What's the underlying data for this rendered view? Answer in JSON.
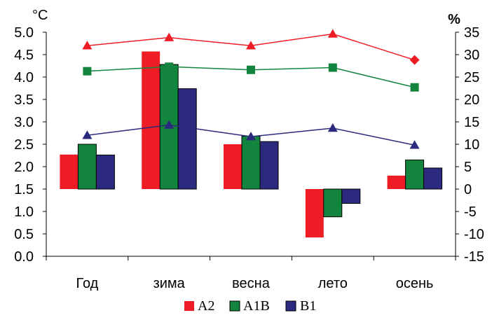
{
  "chart_data": {
    "type": "bar",
    "categories": [
      "Год",
      "зима",
      "весна",
      "лето",
      "осень"
    ],
    "left_axis": {
      "unit": "°C",
      "ylim": [
        0.0,
        5.0
      ],
      "ticks": [
        "0.0",
        "0.5",
        "1.0",
        "1.5",
        "2.0",
        "2.5",
        "3.0",
        "3.5",
        "4.0",
        "4.5",
        "5.0"
      ],
      "baseline": 1.5
    },
    "right_axis": {
      "unit": "%",
      "ylim": [
        -15,
        35
      ],
      "ticks": [
        "-15",
        "-10",
        "-5",
        "0",
        "5",
        "10",
        "15",
        "20",
        "25",
        "30",
        "35"
      ]
    },
    "bar_series": [
      {
        "name": "A2",
        "color": "#ee1c25",
        "values": [
          2.27,
          4.57,
          2.5,
          0.42,
          1.8
        ]
      },
      {
        "name": "A1B",
        "color": "#13843d",
        "values": [
          2.5,
          4.28,
          2.68,
          0.88,
          2.15
        ]
      },
      {
        "name": "B1",
        "color": "#2b2a7e",
        "values": [
          2.26,
          3.74,
          2.56,
          1.18,
          1.97
        ]
      }
    ],
    "line_series": [
      {
        "series": "A2",
        "color": "#ee1c25",
        "marker": "triangle",
        "last_marker": "diamond",
        "values": [
          32.0,
          33.8,
          32.0,
          34.6,
          28.8
        ]
      },
      {
        "series": "A1B",
        "color": "#13843d",
        "marker": "square",
        "values": [
          26.3,
          27.3,
          26.6,
          27.1,
          22.7
        ]
      },
      {
        "series": "B1",
        "color": "#2b2a7e",
        "marker": "triangle",
        "values": [
          12.0,
          14.3,
          11.7,
          13.6,
          9.8
        ]
      }
    ],
    "grid": false,
    "legend_position": "bottom-center"
  }
}
